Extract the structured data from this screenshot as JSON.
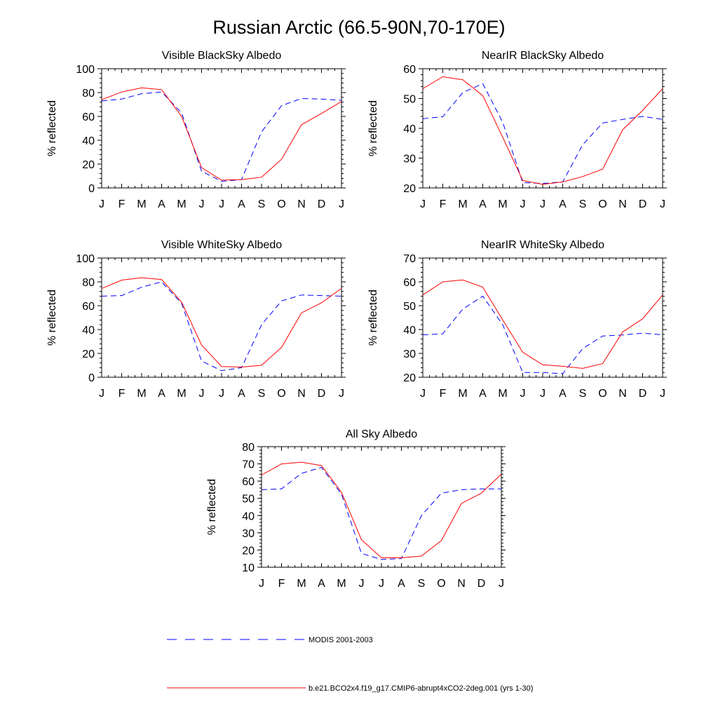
{
  "figure_title": "Russian Arctic (66.5-90N,70-170E)",
  "legend": [
    {
      "label": "MODIS 2001-2003",
      "color": "#0000ff",
      "dash": true
    },
    {
      "label": "b.e21.BCO2x4.f19_g17.CMIP6-abrupt4xCO2-2deg.001 (yrs 1-30)",
      "color": "#ff0000",
      "dash": false
    }
  ],
  "chart_data": [
    {
      "type": "line",
      "title": "Visible BlackSky Albedo",
      "ylabel": "% reflected",
      "x": [
        "J",
        "F",
        "M",
        "A",
        "M",
        "J",
        "J",
        "A",
        "S",
        "O",
        "N",
        "D",
        "J"
      ],
      "ylim": [
        0,
        100
      ],
      "yticks": [
        0,
        20,
        40,
        60,
        80,
        100
      ],
      "series": [
        {
          "name": "MODIS 2001-2003",
          "color": "#0000ff",
          "dash": true,
          "values": [
            73,
            74.5,
            79,
            80.5,
            63,
            14,
            5.5,
            7,
            47,
            69,
            75,
            74.5,
            73.5
          ]
        },
        {
          "name": "b.e21.BCO2x4.f19_g17.CMIP6-abrupt4xCO2-2deg.001 (yrs 1-30)",
          "color": "#ff0000",
          "dash": false,
          "values": [
            74,
            80.5,
            84,
            82.5,
            60,
            17,
            6.5,
            7,
            9,
            24,
            53,
            62.5,
            72.5
          ]
        }
      ]
    },
    {
      "type": "line",
      "title": "NearIR BlackSky Albedo",
      "ylabel": "% reflected",
      "x": [
        "J",
        "F",
        "M",
        "A",
        "M",
        "J",
        "J",
        "A",
        "S",
        "O",
        "N",
        "D",
        "J"
      ],
      "ylim": [
        20,
        60
      ],
      "yticks": [
        20,
        30,
        40,
        50,
        60
      ],
      "series": [
        {
          "name": "MODIS 2001-2003",
          "color": "#0000ff",
          "dash": true,
          "values": [
            43.2,
            43.9,
            52,
            55,
            42,
            21.8,
            21.5,
            22,
            34.5,
            41.8,
            43,
            44,
            43
          ]
        },
        {
          "name": "b.e21.BCO2x4.f19_g17.CMIP6-abrupt4xCO2-2deg.001 (yrs 1-30)",
          "color": "#ff0000",
          "dash": false,
          "values": [
            53.3,
            57.3,
            56.3,
            51,
            37,
            22.5,
            21.2,
            22,
            23.8,
            26.3,
            39.5,
            46,
            53.3
          ]
        }
      ]
    },
    {
      "type": "line",
      "title": "Visible WhiteSky Albedo",
      "ylabel": "% reflected",
      "x": [
        "J",
        "F",
        "M",
        "A",
        "M",
        "J",
        "J",
        "A",
        "S",
        "O",
        "N",
        "D",
        "J"
      ],
      "ylim": [
        0,
        100
      ],
      "yticks": [
        0,
        20,
        40,
        60,
        80,
        100
      ],
      "series": [
        {
          "name": "MODIS 2001-2003",
          "color": "#0000ff",
          "dash": true,
          "values": [
            68,
            68.5,
            75.5,
            80,
            62,
            13.5,
            5.5,
            8,
            44,
            64,
            69,
            68.5,
            68
          ]
        },
        {
          "name": "b.e21.BCO2x4.f19_g17.CMIP6-abrupt4xCO2-2deg.001 (yrs 1-30)",
          "color": "#ff0000",
          "dash": false,
          "values": [
            74.5,
            81.5,
            83.5,
            82,
            63,
            27,
            9,
            8.5,
            10,
            25,
            54,
            62.5,
            74.5
          ]
        }
      ]
    },
    {
      "type": "line",
      "title": "NearIR WhiteSky Albedo",
      "ylabel": "% reflected",
      "x": [
        "J",
        "F",
        "M",
        "A",
        "M",
        "J",
        "J",
        "A",
        "S",
        "O",
        "N",
        "D",
        "J"
      ],
      "ylim": [
        20,
        70
      ],
      "yticks": [
        20,
        30,
        40,
        50,
        60,
        70
      ],
      "series": [
        {
          "name": "MODIS 2001-2003",
          "color": "#0000ff",
          "dash": true,
          "values": [
            37.8,
            38.2,
            48.6,
            54,
            42,
            22,
            22,
            21.5,
            32,
            37.3,
            37.7,
            38.5,
            37.8
          ]
        },
        {
          "name": "b.e21.BCO2x4.f19_g17.CMIP6-abrupt4xCO2-2deg.001 (yrs 1-30)",
          "color": "#ff0000",
          "dash": false,
          "values": [
            54.5,
            60,
            60.8,
            57.8,
            44,
            30.5,
            25.2,
            24.6,
            23.7,
            25.7,
            39,
            44.5,
            54.5
          ]
        }
      ]
    },
    {
      "type": "line",
      "title": "All Sky Albedo",
      "ylabel": "% reflected",
      "x": [
        "J",
        "F",
        "M",
        "A",
        "M",
        "J",
        "J",
        "A",
        "S",
        "O",
        "N",
        "D",
        "J"
      ],
      "ylim": [
        10,
        80
      ],
      "yticks": [
        10,
        20,
        30,
        40,
        50,
        60,
        70,
        80
      ],
      "series": [
        {
          "name": "MODIS 2001-2003",
          "color": "#0000ff",
          "dash": true,
          "values": [
            55,
            55.5,
            64.5,
            68,
            52.5,
            18,
            14.5,
            15,
            40,
            53,
            55,
            55.5,
            55.5
          ]
        },
        {
          "name": "b.e21.BCO2x4.f19_g17.CMIP6-abrupt4xCO2-2deg.001 (yrs 1-30)",
          "color": "#ff0000",
          "dash": false,
          "values": [
            63.5,
            70,
            71,
            69,
            53.5,
            26,
            15.5,
            15.5,
            16.5,
            25.5,
            47,
            53,
            64
          ]
        }
      ]
    }
  ]
}
